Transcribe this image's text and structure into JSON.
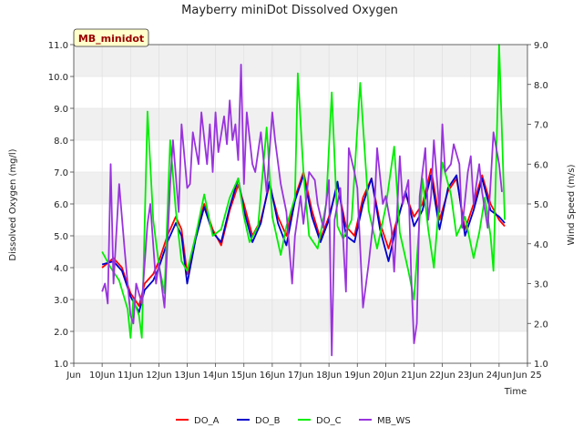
{
  "chart_data": {
    "type": "line",
    "title": "Mayberry miniDot Dissolved Oxygen",
    "xlabel": "Time",
    "ylabel_left": "Dissolved Oxygen (mg/l)",
    "ylabel_right": "Wind Speed (m/s)",
    "annotation": "MB_minidot",
    "x_range": [
      9,
      25
    ],
    "x_ticks": [
      {
        "x": 9,
        "label": "Jun"
      },
      {
        "x": 10,
        "label": "10Jun"
      },
      {
        "x": 11,
        "label": "11Jun"
      },
      {
        "x": 12,
        "label": "12Jun"
      },
      {
        "x": 13,
        "label": "13Jun"
      },
      {
        "x": 14,
        "label": "14Jun"
      },
      {
        "x": 15,
        "label": "15Jun"
      },
      {
        "x": 16,
        "label": "16Jun"
      },
      {
        "x": 17,
        "label": "17Jun"
      },
      {
        "x": 18,
        "label": "18Jun"
      },
      {
        "x": 19,
        "label": "19Jun"
      },
      {
        "x": 20,
        "label": "20Jun"
      },
      {
        "x": 21,
        "label": "21Jun"
      },
      {
        "x": 22,
        "label": "22Jun"
      },
      {
        "x": 23,
        "label": "23Jun"
      },
      {
        "x": 24,
        "label": "24Jun"
      },
      {
        "x": 25,
        "label": "Jun 25"
      }
    ],
    "y_left_range": [
      1.0,
      11.0
    ],
    "y_left_ticks": [
      "1.0",
      "2.0",
      "3.0",
      "4.0",
      "5.0",
      "6.0",
      "7.0",
      "8.0",
      "9.0",
      "10.0",
      "11.0"
    ],
    "y_right_range": [
      1.0,
      9.0
    ],
    "y_right_ticks": [
      "1.0",
      "2.0",
      "3.0",
      "4.0",
      "5.0",
      "6.0",
      "7.0",
      "8.0",
      "9.0"
    ],
    "grid": true,
    "legend_position": "bottom",
    "series": [
      {
        "name": "DO_A",
        "color": "#ff0000",
        "axis": "left",
        "x": [
          10.0,
          10.4,
          10.7,
          11.0,
          11.3,
          11.5,
          11.8,
          12.0,
          12.3,
          12.6,
          12.8,
          13.0,
          13.3,
          13.6,
          13.9,
          14.2,
          14.5,
          14.8,
          15.0,
          15.3,
          15.6,
          15.9,
          16.2,
          16.5,
          16.8,
          17.1,
          17.4,
          17.7,
          18.0,
          18.3,
          18.6,
          18.9,
          19.2,
          19.5,
          19.8,
          20.1,
          20.4,
          20.7,
          21.0,
          21.3,
          21.6,
          21.9,
          22.2,
          22.5,
          22.8,
          23.1,
          23.4,
          23.7,
          24.0,
          24.2
        ],
        "y": [
          4.0,
          4.3,
          4.0,
          3.2,
          2.8,
          3.5,
          3.8,
          4.2,
          5.0,
          5.6,
          5.2,
          3.8,
          5.0,
          6.0,
          5.2,
          4.7,
          5.8,
          6.6,
          6.0,
          5.0,
          5.5,
          6.6,
          5.6,
          5.0,
          6.2,
          7.0,
          5.8,
          4.9,
          5.6,
          6.6,
          5.3,
          5.0,
          6.2,
          6.8,
          5.4,
          4.6,
          5.5,
          6.3,
          5.6,
          6.0,
          7.1,
          5.5,
          6.4,
          6.8,
          5.2,
          6.0,
          6.9,
          6.0,
          5.5,
          5.3
        ]
      },
      {
        "name": "DO_B",
        "color": "#0000cc",
        "axis": "left",
        "x": [
          10.0,
          10.4,
          10.7,
          11.0,
          11.3,
          11.5,
          11.8,
          12.0,
          12.3,
          12.6,
          12.8,
          13.0,
          13.3,
          13.6,
          13.9,
          14.2,
          14.5,
          14.8,
          15.0,
          15.3,
          15.6,
          15.9,
          16.2,
          16.5,
          16.8,
          17.1,
          17.4,
          17.7,
          18.0,
          18.3,
          18.6,
          18.9,
          19.2,
          19.5,
          19.8,
          20.1,
          20.4,
          20.7,
          21.0,
          21.3,
          21.6,
          21.9,
          22.2,
          22.5,
          22.8,
          23.1,
          23.4,
          23.7,
          24.0,
          24.2
        ],
        "y": [
          4.1,
          4.2,
          3.9,
          3.1,
          2.6,
          3.3,
          3.6,
          4.0,
          4.8,
          5.4,
          5.0,
          3.5,
          4.9,
          5.9,
          5.1,
          4.8,
          5.9,
          6.8,
          5.8,
          4.8,
          5.4,
          6.7,
          5.4,
          4.7,
          6.1,
          6.9,
          5.6,
          4.8,
          5.5,
          6.7,
          5.0,
          4.8,
          6.0,
          6.8,
          5.2,
          4.2,
          5.4,
          6.4,
          5.3,
          5.8,
          6.9,
          5.2,
          6.5,
          6.9,
          5.0,
          5.8,
          6.8,
          5.8,
          5.6,
          5.4
        ]
      },
      {
        "name": "DO_C",
        "color": "#00ee00",
        "axis": "left",
        "x": [
          10.0,
          10.3,
          10.6,
          10.9,
          11.0,
          11.1,
          11.3,
          11.4,
          11.6,
          11.8,
          12.0,
          12.2,
          12.4,
          12.6,
          12.8,
          13.0,
          13.3,
          13.6,
          13.9,
          14.2,
          14.5,
          14.8,
          15.0,
          15.2,
          15.5,
          15.8,
          16.0,
          16.3,
          16.5,
          16.8,
          16.9,
          17.1,
          17.3,
          17.6,
          17.9,
          18.1,
          18.3,
          18.5,
          18.8,
          19.1,
          19.4,
          19.7,
          20.0,
          20.3,
          20.5,
          20.8,
          21.0,
          21.3,
          21.5,
          21.7,
          22.0,
          22.3,
          22.5,
          22.8,
          23.1,
          23.3,
          23.5,
          23.7,
          23.8,
          24.0,
          24.2
        ],
        "y": [
          4.5,
          4.0,
          3.6,
          2.7,
          1.8,
          3.0,
          2.5,
          1.8,
          8.9,
          5.5,
          4.1,
          3.2,
          8.0,
          5.8,
          4.2,
          3.9,
          5.0,
          6.3,
          5.0,
          5.2,
          6.2,
          6.8,
          5.6,
          4.8,
          5.3,
          8.4,
          5.6,
          4.4,
          5.3,
          6.2,
          10.1,
          7.0,
          5.0,
          4.6,
          6.0,
          9.5,
          5.3,
          4.9,
          5.5,
          9.8,
          5.8,
          4.6,
          5.9,
          7.8,
          5.1,
          3.9,
          3.0,
          6.8,
          5.2,
          4.0,
          7.3,
          6.3,
          5.0,
          5.6,
          4.3,
          5.1,
          6.2,
          5.0,
          3.9,
          11.0,
          5.5
        ]
      },
      {
        "name": "MB_WS",
        "color": "#9933dd",
        "axis": "right",
        "x": [
          10.0,
          10.1,
          10.2,
          10.3,
          10.4,
          10.6,
          10.8,
          11.0,
          11.1,
          11.2,
          11.4,
          11.6,
          11.7,
          11.9,
          12.0,
          12.2,
          12.4,
          12.5,
          12.7,
          12.8,
          13.0,
          13.1,
          13.2,
          13.4,
          13.5,
          13.7,
          13.8,
          13.9,
          14.0,
          14.1,
          14.3,
          14.4,
          14.5,
          14.6,
          14.7,
          14.8,
          14.9,
          15.0,
          15.1,
          15.3,
          15.4,
          15.6,
          15.8,
          16.0,
          16.1,
          16.3,
          16.5,
          16.7,
          16.8,
          17.0,
          17.1,
          17.3,
          17.5,
          17.6,
          17.8,
          18.0,
          18.1,
          18.2,
          18.4,
          18.6,
          18.7,
          18.9,
          19.0,
          19.2,
          19.4,
          19.6,
          19.7,
          19.9,
          20.0,
          20.2,
          20.3,
          20.5,
          20.6,
          20.8,
          20.9,
          21.0,
          21.1,
          21.2,
          21.4,
          21.5,
          21.6,
          21.7,
          21.9,
          22.0,
          22.1,
          22.3,
          22.4,
          22.6,
          22.7,
          22.9,
          23.0,
          23.1,
          23.3,
          23.4,
          23.6,
          23.7,
          23.8,
          24.0,
          24.1
        ],
        "y": [
          2.8,
          3.0,
          2.5,
          6.0,
          3.0,
          5.5,
          3.8,
          2.2,
          2.0,
          3.0,
          2.5,
          4.5,
          5.0,
          3.0,
          3.5,
          2.4,
          5.5,
          6.6,
          4.8,
          7.0,
          5.4,
          5.5,
          6.8,
          6.0,
          7.3,
          6.0,
          7.0,
          5.8,
          7.3,
          6.3,
          7.2,
          6.5,
          7.6,
          6.6,
          7.0,
          6.1,
          8.5,
          5.5,
          7.3,
          6.0,
          5.8,
          6.8,
          5.3,
          7.3,
          6.6,
          5.5,
          4.8,
          3.0,
          4.2,
          5.2,
          4.5,
          5.8,
          5.6,
          5.0,
          4.4,
          5.6,
          1.2,
          4.6,
          5.4,
          2.8,
          6.4,
          5.8,
          5.4,
          2.4,
          3.5,
          4.8,
          6.4,
          5.0,
          5.2,
          4.4,
          3.3,
          6.2,
          5.0,
          5.6,
          3.2,
          1.5,
          2.0,
          5.2,
          6.4,
          4.6,
          5.2,
          6.6,
          4.8,
          7.0,
          5.8,
          6.0,
          6.5,
          6.0,
          4.4,
          5.8,
          6.2,
          5.0,
          6.0,
          5.3,
          4.4,
          5.5,
          6.8,
          6.0,
          5.3
        ]
      }
    ]
  }
}
